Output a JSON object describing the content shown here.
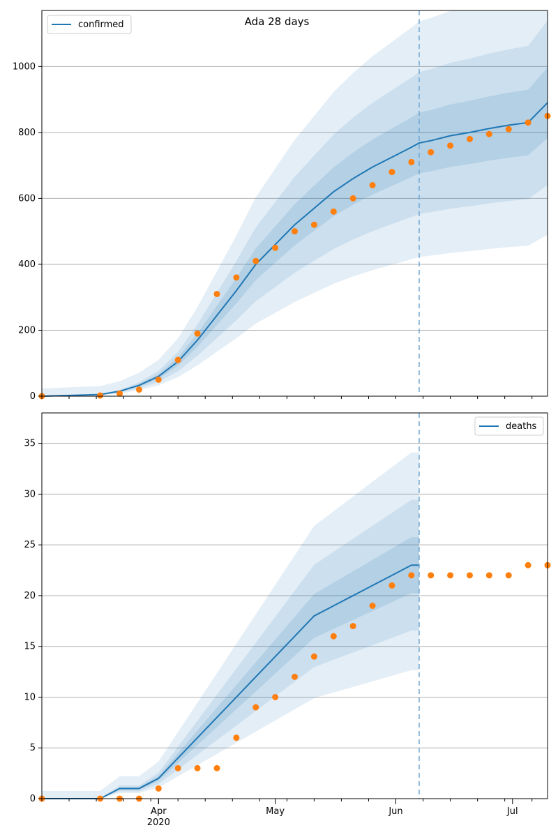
{
  "chart_data": [
    {
      "type": "line",
      "title": "Ada 28 days",
      "xlabel": "",
      "ylabel": "",
      "ylim": [
        0,
        1170
      ],
      "yticks": [
        0,
        200,
        400,
        600,
        800,
        1000
      ],
      "grid": "horizontal",
      "legend_position": "top-left",
      "colors": {
        "median": "#1f77b4",
        "observed": "#ff7f0e",
        "band": "#1f77b4",
        "vline": "#1f77b4"
      },
      "forecast_start_day": 97,
      "series": [
        {
          "name": "confirmed",
          "kind": "median",
          "days": [
            0,
            15,
            20,
            25,
            30,
            35,
            40,
            45,
            50,
            55,
            60,
            65,
            70,
            75,
            80,
            85,
            90,
            95,
            97,
            100,
            105,
            110,
            115,
            120,
            125,
            130
          ],
          "values": [
            0,
            5,
            15,
            33,
            60,
            105,
            170,
            245,
            320,
            400,
            460,
            520,
            570,
            620,
            660,
            695,
            725,
            755,
            768,
            775,
            790,
            800,
            812,
            822,
            830,
            890
          ]
        },
        {
          "name": "",
          "kind": "observed",
          "days": [
            0,
            15,
            20,
            25,
            30,
            35,
            40,
            45,
            50,
            55,
            60,
            65,
            70,
            75,
            80,
            85,
            90,
            95,
            100,
            105,
            110,
            115,
            120,
            125,
            130
          ],
          "values": [
            0,
            2,
            8,
            20,
            50,
            110,
            190,
            310,
            360,
            410,
            450,
            500,
            520,
            560,
            600,
            640,
            680,
            710,
            740,
            760,
            780,
            795,
            810,
            830,
            850
          ]
        }
      ]
    },
    {
      "type": "line",
      "title": "",
      "xlabel": "",
      "ylabel": "",
      "ylim": [
        0,
        38
      ],
      "yticks": [
        0,
        5,
        10,
        15,
        20,
        25,
        30,
        35
      ],
      "grid": "horizontal",
      "legend_position": "top-right",
      "colors": {
        "median": "#1f77b4",
        "observed": "#ff7f0e",
        "band": "#1f77b4",
        "vline": "#1f77b4"
      },
      "forecast_start_day": 97,
      "x_tick_labels": [
        {
          "day": 30,
          "label": "Apr"
        },
        {
          "day": 30,
          "label": "2020"
        },
        {
          "day": 60,
          "label": "May"
        },
        {
          "day": 91,
          "label": "Jun"
        },
        {
          "day": 121,
          "label": "Jul"
        }
      ],
      "series": [
        {
          "name": "deaths",
          "kind": "median",
          "days": [
            0,
            15,
            20,
            25,
            30,
            35,
            40,
            45,
            50,
            55,
            60,
            65,
            70,
            75,
            80,
            85,
            90,
            95,
            97
          ],
          "values": [
            0,
            0,
            1,
            1,
            2,
            4,
            6,
            8,
            10,
            12,
            14,
            16,
            18,
            19,
            20,
            21,
            22,
            23,
            23
          ]
        },
        {
          "name": "",
          "kind": "observed",
          "days": [
            0,
            15,
            20,
            25,
            30,
            35,
            40,
            45,
            50,
            55,
            60,
            65,
            70,
            75,
            80,
            85,
            90,
            95,
            100,
            105,
            110,
            115,
            120,
            125,
            130
          ],
          "values": [
            0,
            0,
            0,
            0,
            1,
            3,
            3,
            3,
            6,
            9,
            10,
            12,
            14,
            16,
            17,
            19,
            21,
            22,
            22,
            22,
            22,
            22,
            22,
            23,
            23
          ]
        }
      ]
    }
  ]
}
